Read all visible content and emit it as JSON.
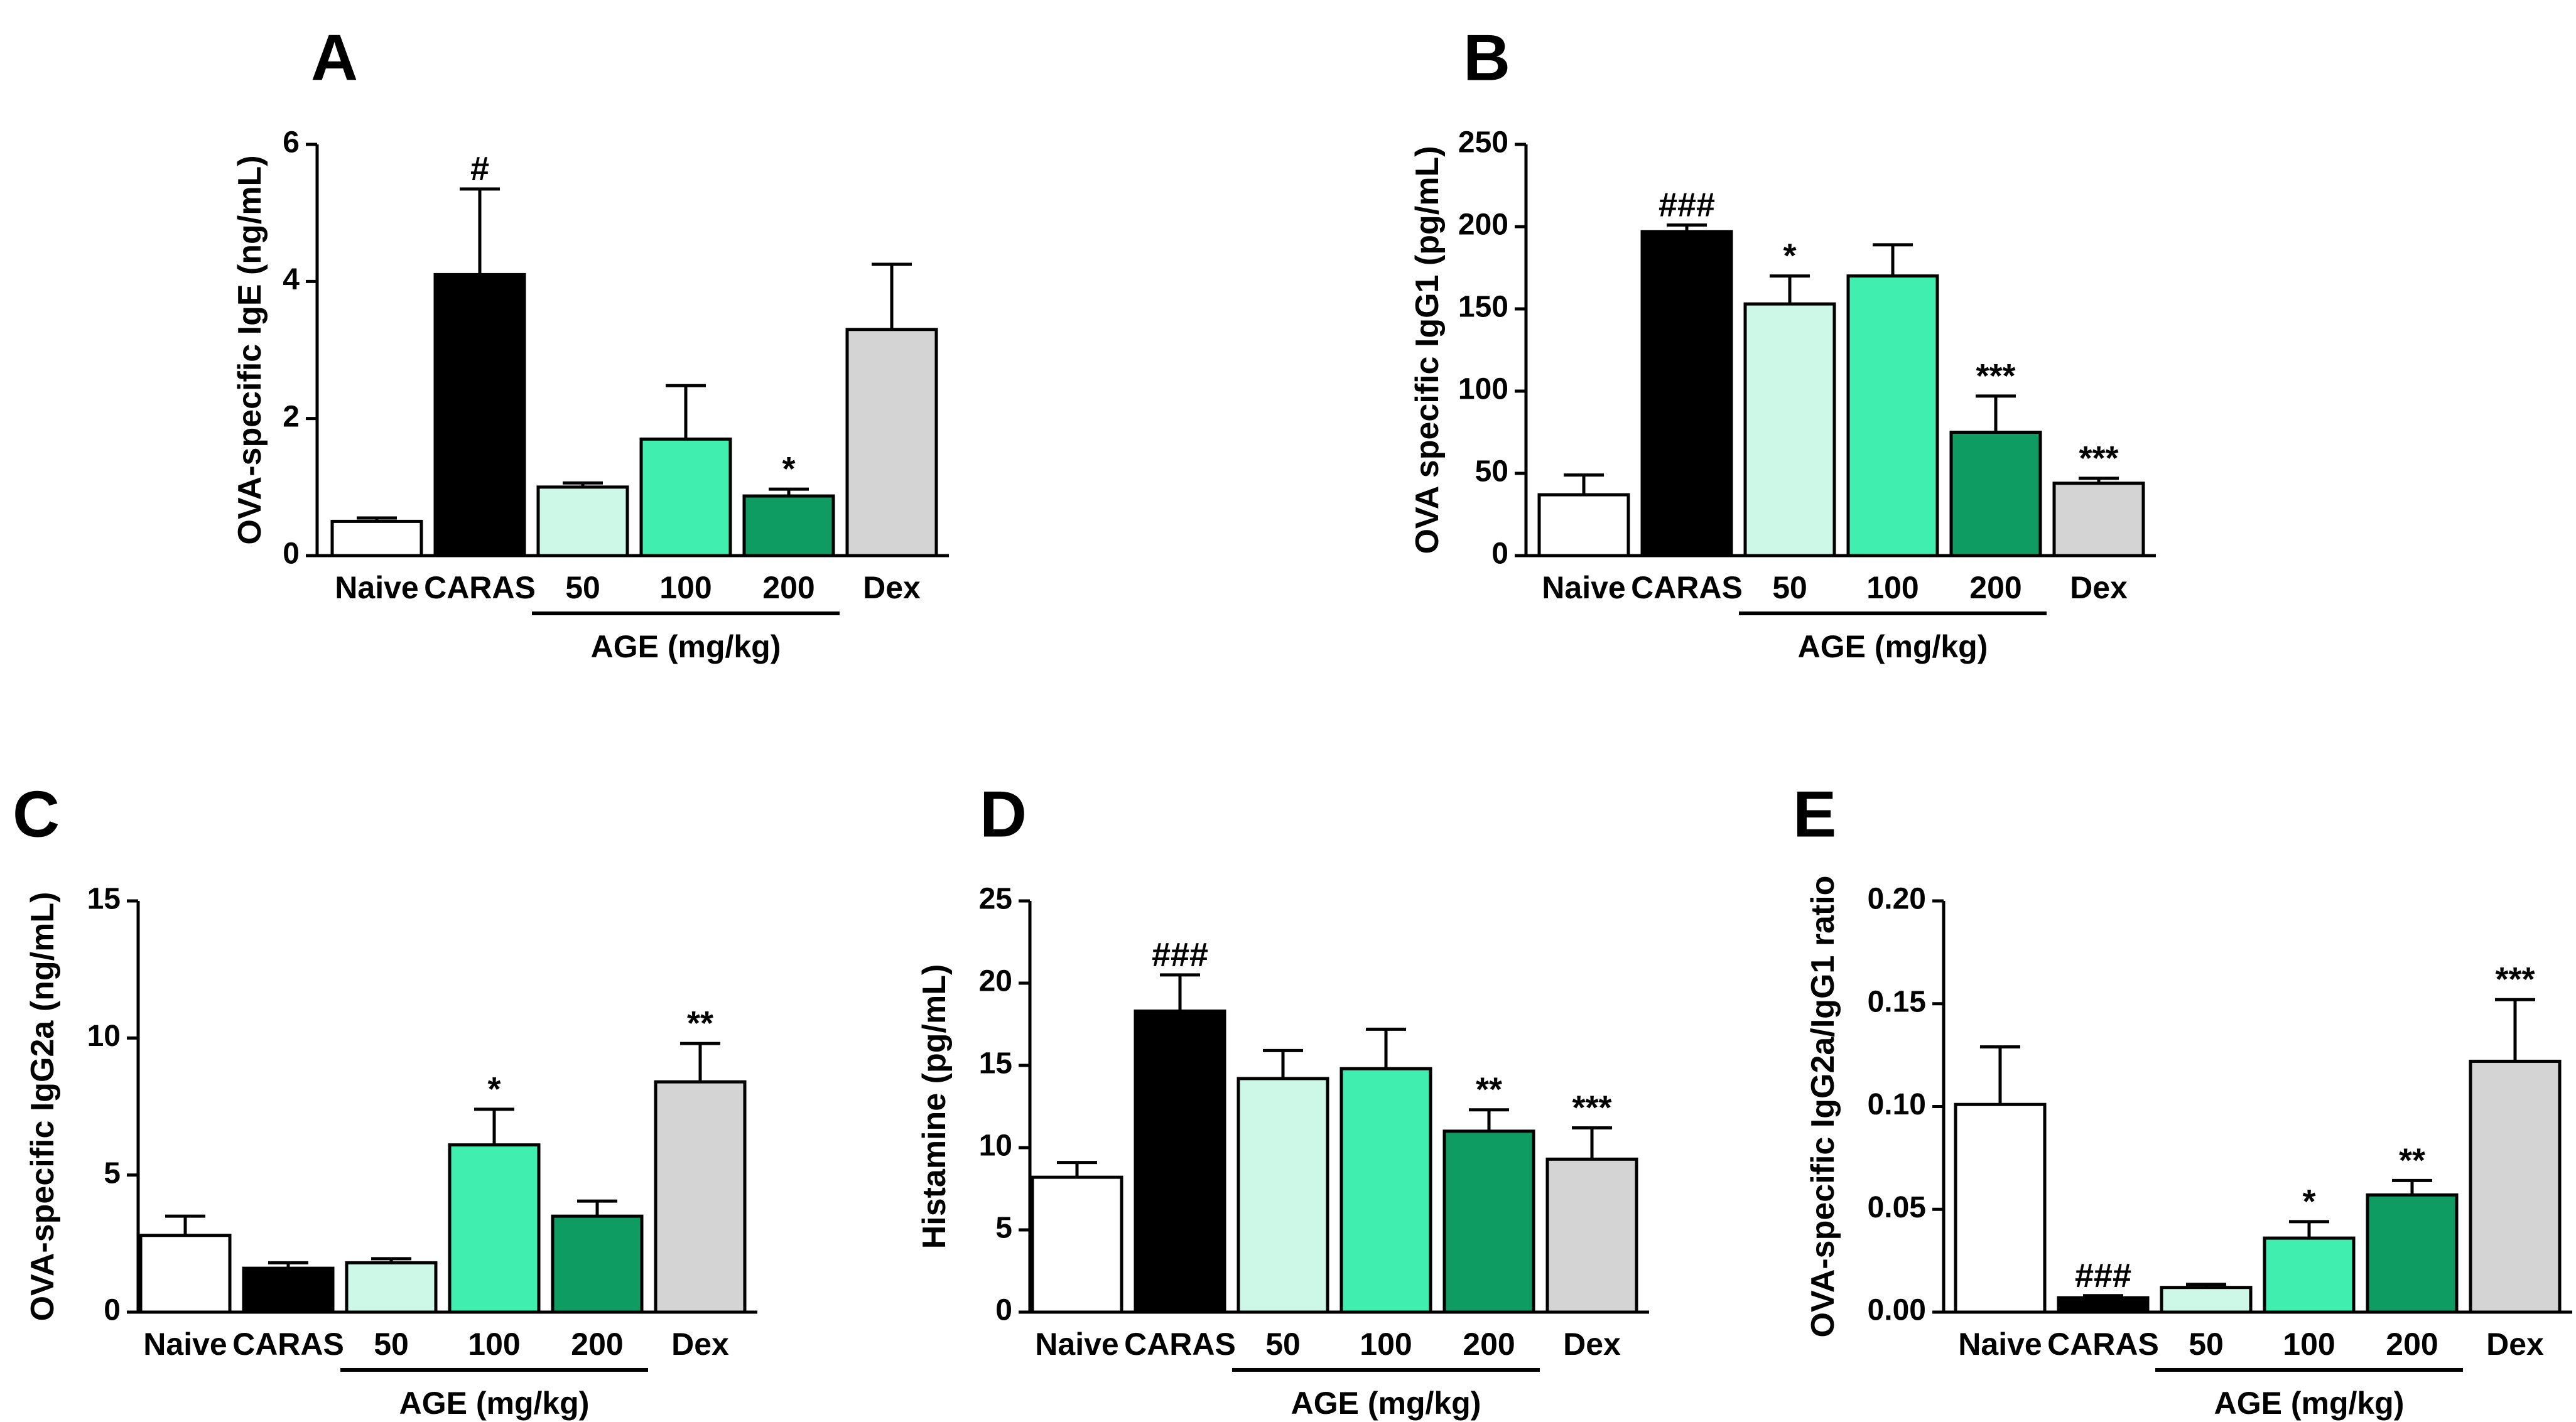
{
  "figure_colors": {
    "naive": "#ffffff",
    "caras": "#000000",
    "age50": "#cdf7e7",
    "age100": "#40efb0",
    "age200": "#0f9c62",
    "dex": "#d4d4d4"
  },
  "chart_data": [
    {
      "panel": "A",
      "type": "bar",
      "ylabel": "OVA-specific IgE (ng/mL)",
      "ylim": [
        0,
        6
      ],
      "yticks": [
        "0",
        "2",
        "4",
        "6"
      ],
      "categories": [
        "Naive",
        "CARAS",
        "50",
        "100",
        "200",
        "Dex"
      ],
      "values": [
        0.5,
        4.1,
        1.0,
        1.7,
        0.87,
        3.3
      ],
      "errors": [
        0.05,
        1.25,
        0.06,
        0.78,
        0.1,
        0.95
      ],
      "annotations": [
        "",
        "#",
        "",
        "",
        "*",
        ""
      ],
      "group_label": "AGE (mg/kg)"
    },
    {
      "panel": "B",
      "type": "bar",
      "ylabel": "OVA specific IgG1 (pg/mL)",
      "ylim": [
        0,
        250
      ],
      "yticks": [
        "0",
        "50",
        "100",
        "150",
        "200",
        "250"
      ],
      "categories": [
        "Naive",
        "CARAS",
        "50",
        "100",
        "200",
        "Dex"
      ],
      "values": [
        37,
        197,
        153,
        170,
        75,
        44
      ],
      "errors": [
        12,
        4,
        17,
        19,
        22,
        3
      ],
      "annotations": [
        "",
        "###",
        "*",
        "",
        "***",
        "***"
      ],
      "group_label": "AGE (mg/kg)"
    },
    {
      "panel": "C",
      "type": "bar",
      "ylabel": "OVA-specific IgG2a (ng/mL)",
      "ylim": [
        0,
        15
      ],
      "yticks": [
        "0",
        "5",
        "10",
        "15"
      ],
      "categories": [
        "Naive",
        "CARAS",
        "50",
        "100",
        "200",
        "Dex"
      ],
      "values": [
        2.8,
        1.6,
        1.8,
        6.1,
        3.5,
        8.4
      ],
      "errors": [
        0.7,
        0.2,
        0.15,
        1.3,
        0.55,
        1.4
      ],
      "annotations": [
        "",
        "",
        "",
        "*",
        "",
        "**"
      ],
      "group_label": "AGE (mg/kg)"
    },
    {
      "panel": "D",
      "type": "bar",
      "ylabel": "Histamine (pg/mL)",
      "ylim": [
        0,
        25
      ],
      "yticks": [
        "0",
        "5",
        "10",
        "15",
        "20",
        "25"
      ],
      "categories": [
        "Naive",
        "CARAS",
        "50",
        "100",
        "200",
        "Dex"
      ],
      "values": [
        8.2,
        18.3,
        14.2,
        14.8,
        11.0,
        9.3
      ],
      "errors": [
        0.9,
        2.2,
        1.7,
        2.4,
        1.3,
        1.9
      ],
      "annotations": [
        "",
        "###",
        "",
        "",
        "**",
        "***"
      ],
      "group_label": "AGE (mg/kg)"
    },
    {
      "panel": "E",
      "type": "bar",
      "ylabel": "OVA-specific IgG2a/IgG1 ratio",
      "ylim": [
        0,
        0.2
      ],
      "yticks": [
        "0.00",
        "0.05",
        "0.10",
        "0.15",
        "0.20"
      ],
      "categories": [
        "Naive",
        "CARAS",
        "50",
        "100",
        "200",
        "Dex"
      ],
      "values": [
        0.101,
        0.007,
        0.012,
        0.036,
        0.057,
        0.122
      ],
      "errors": [
        0.028,
        0.001,
        0.0015,
        0.008,
        0.007,
        0.03
      ],
      "annotations": [
        "",
        "###",
        "",
        "*",
        "**",
        "***"
      ],
      "group_label": "AGE (mg/kg)"
    }
  ]
}
